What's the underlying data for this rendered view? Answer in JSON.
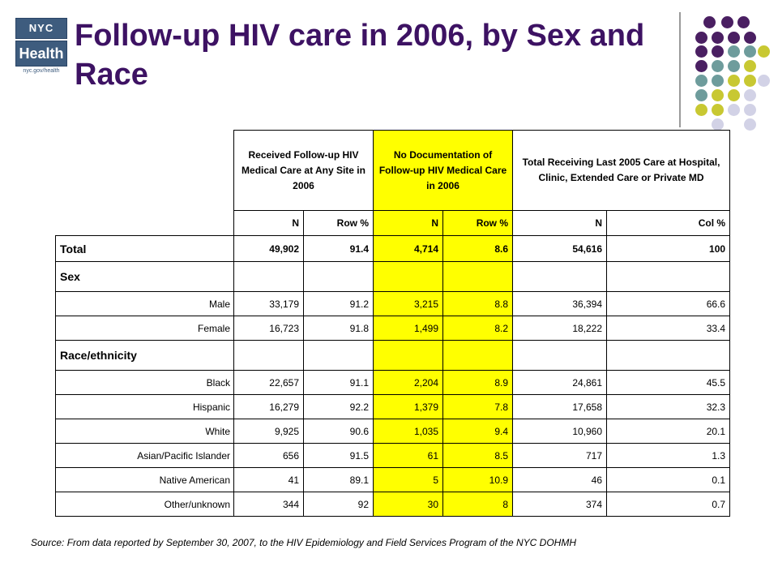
{
  "slide": {
    "title": "Follow-up HIV care in 2006, by Sex and Race",
    "source": "Source: From data reported by September 30, 2007, to the HIV Epidemiology and Field Services Program of the NYC DOHMH"
  },
  "logo": {
    "line1": "NYC",
    "line2": "Health",
    "url": "nyc.gov/health",
    "color": "#3e5c7e"
  },
  "table": {
    "group_headers": [
      "Received Follow-up HIV Medical Care at Any Site in 2006",
      "No Documentation of Follow-up HIV Medical Care in 2006",
      "Total Receiving Last 2005 Care at Hospital, Clinic, Extended Care or Private MD"
    ],
    "sub_headers": [
      "N",
      "Row %",
      "N",
      "Row %",
      "N",
      "Col %"
    ],
    "rows": [
      {
        "label": "Total",
        "values": [
          "49,902",
          "91.4",
          "4,714",
          "8.6",
          "54,616",
          "100"
        ]
      },
      {
        "label": "Sex",
        "values": [
          "",
          "",
          "",
          "",
          "",
          ""
        ]
      },
      {
        "label": "Male",
        "values": [
          "33,179",
          "91.2",
          "3,215",
          "8.8",
          "36,394",
          "66.6"
        ]
      },
      {
        "label": "Female",
        "values": [
          "16,723",
          "91.8",
          "1,499",
          "8.2",
          "18,222",
          "33.4"
        ]
      },
      {
        "label": "Race/ethnicity",
        "values": [
          "",
          "",
          "",
          "",
          "",
          ""
        ]
      },
      {
        "label": "Black",
        "values": [
          "22,657",
          "91.1",
          "2,204",
          "8.9",
          "24,861",
          "45.5"
        ]
      },
      {
        "label": "Hispanic",
        "values": [
          "16,279",
          "92.2",
          "1,379",
          "7.8",
          "17,658",
          "32.3"
        ]
      },
      {
        "label": "White",
        "values": [
          "9,925",
          "90.6",
          "1,035",
          "9.4",
          "10,960",
          "20.1"
        ]
      },
      {
        "label": "Asian/Pacific Islander",
        "values": [
          "656",
          "91.5",
          "61",
          "8.5",
          "717",
          "1.3"
        ]
      },
      {
        "label": "Native American",
        "values": [
          "41",
          "89.1",
          "5",
          "10.9",
          "46",
          "0.1"
        ]
      },
      {
        "label": "Other/unknown",
        "values": [
          "344",
          "92",
          "30",
          "8",
          "374",
          "0.7"
        ]
      }
    ]
  },
  "colors": {
    "title": "#3d1263",
    "highlight": "#ffff00",
    "dot_purple": "#4a1f62",
    "dot_teal": "#6e9c9c",
    "dot_yellow": "#c8c832",
    "dot_lavender": "#d2d2e6"
  }
}
